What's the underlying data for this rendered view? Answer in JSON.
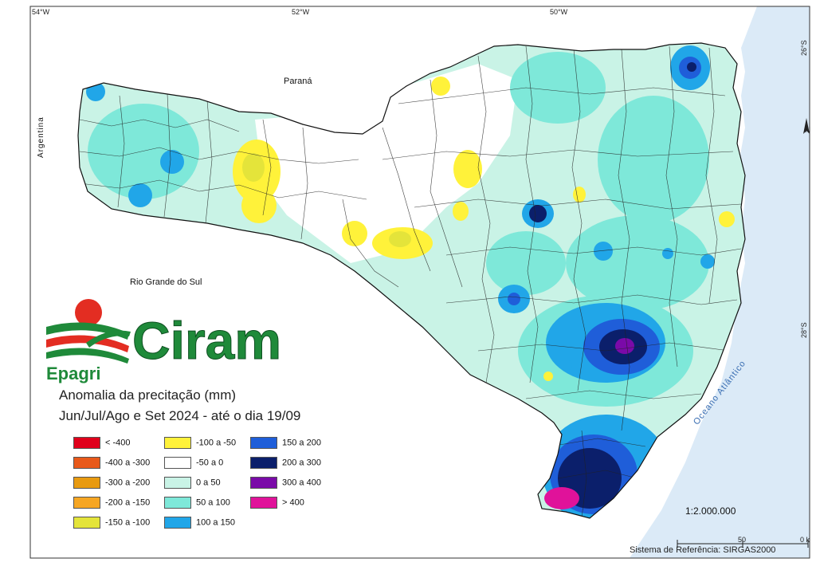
{
  "title": "Anomalia da precitação (mm)",
  "subtitle": "Jun/Jul/Ago e Set 2024 - até o dia 19/09",
  "logo": {
    "name": "Ciram",
    "org": "Epagri",
    "colors": {
      "green": "#1f8a3a",
      "red": "#e32d22"
    }
  },
  "coords": {
    "lon": [
      "54°W",
      "52°W",
      "50°W"
    ],
    "lat": [
      "26°S",
      "28°S"
    ]
  },
  "regions": {
    "parana": "Paraná",
    "argentina": "Argentina",
    "rs": "Rio Grande do Sul",
    "ocean": "Oceano Atlântico"
  },
  "legend": [
    {
      "label": "< -400",
      "color": "#e0001b"
    },
    {
      "label": "-400 a -300",
      "color": "#e8591a"
    },
    {
      "label": "-300 a -200",
      "color": "#e89a10"
    },
    {
      "label": "-200 a -150",
      "color": "#f6a623"
    },
    {
      "label": "-150 a -100",
      "color": "#e4e43a"
    },
    {
      "label": "-100 a -50",
      "color": "#fff23a"
    },
    {
      "label": "-50 a 0",
      "color": "#ffffff"
    },
    {
      "label": "0 a 50",
      "color": "#c9f3e6"
    },
    {
      "label": "50 a 100",
      "color": "#7ee8d9"
    },
    {
      "label": "100 a 150",
      "color": "#21a6e8"
    },
    {
      "label": "150 a 200",
      "color": "#1f5ed9"
    },
    {
      "label": "200 a 300",
      "color": "#0b1f6b"
    },
    {
      "label": "300 a 400",
      "color": "#7a0aa8"
    },
    {
      "label": "> 400",
      "color": "#e0129a"
    }
  ],
  "scale": "1:2.000.000",
  "scalebar": {
    "mid": "50",
    "end": "0 k"
  },
  "reference": "Sistema de Referência: SIRGAS2000",
  "north": "N",
  "colors": {
    "ocean": "#dbeaf7",
    "frame": "#333333"
  }
}
